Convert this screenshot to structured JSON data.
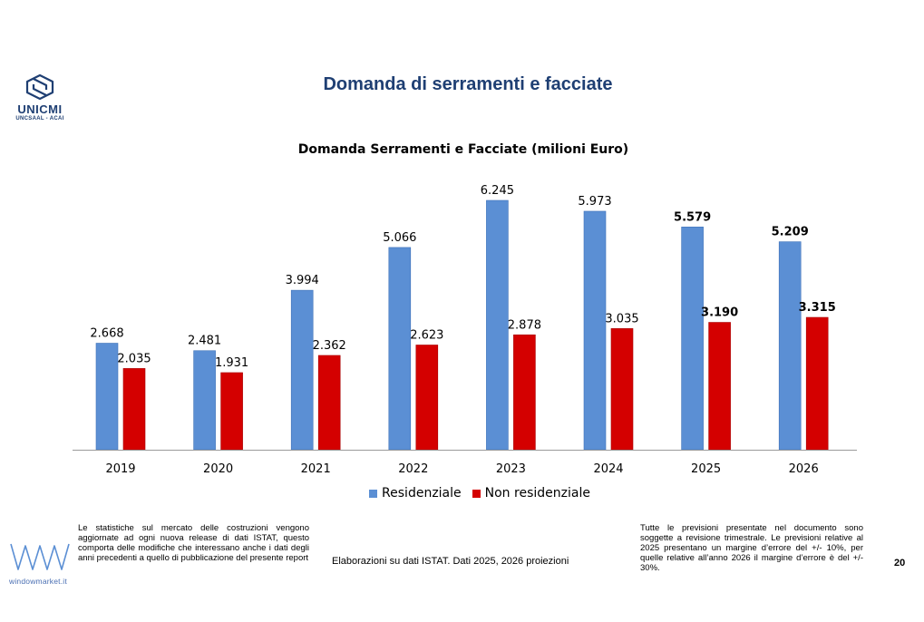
{
  "header": {
    "title": "Domanda di serramenti e facciate",
    "logo_name": "UNICMI",
    "logo_sub": "UNCSAAL - ACAI"
  },
  "chart_data": {
    "type": "bar",
    "title": "Domanda Serramenti e Facciate (milioni Euro)",
    "xlabel": "",
    "ylabel": "",
    "categories": [
      "2019",
      "2020",
      "2021",
      "2022",
      "2023",
      "2024",
      "2025",
      "2026"
    ],
    "series": [
      {
        "name": "Residenziale",
        "color": "#5b8fd4",
        "values": [
          2668,
          2481,
          3994,
          5066,
          6245,
          5973,
          5579,
          5209
        ],
        "labels": [
          "2.668",
          "2.481",
          "3.994",
          "5.066",
          "6.245",
          "5.973",
          "5.579",
          "5.209"
        ]
      },
      {
        "name": "Non residenziale",
        "color": "#d40000",
        "values": [
          2035,
          1931,
          2362,
          2623,
          2878,
          3035,
          3190,
          3315
        ],
        "labels": [
          "2.035",
          "1.931",
          "2.362",
          "2.623",
          "2.878",
          "3.035",
          "3.190",
          "3.315"
        ]
      }
    ],
    "bold_label_categories": [
      "2025",
      "2026"
    ],
    "ylim": [
      0,
      6245
    ],
    "grid": false,
    "legend_position": "bottom"
  },
  "footer": {
    "note_left": "Le statistiche sul mercato delle costruzioni vengono aggiornate ad ogni nuova release di dati ISTAT, questo comporta delle modifiche che interessano anche i dati degli anni precedenti a quello di pubblicazione del presente report",
    "source": "Elaborazioni su dati ISTAT. Dati 2025, 2026 proiezioni",
    "note_right": "Tutte le previsioni presentate nel documento sono soggette a revisione trimestrale. Le previsioni relative al 2025 presentano un margine d’errore del +/- 10%, per quelle relative all’anno 2026 il margine d’errore è del +/- 30%.",
    "brand": "windowmarket.it",
    "page_number": "20"
  }
}
